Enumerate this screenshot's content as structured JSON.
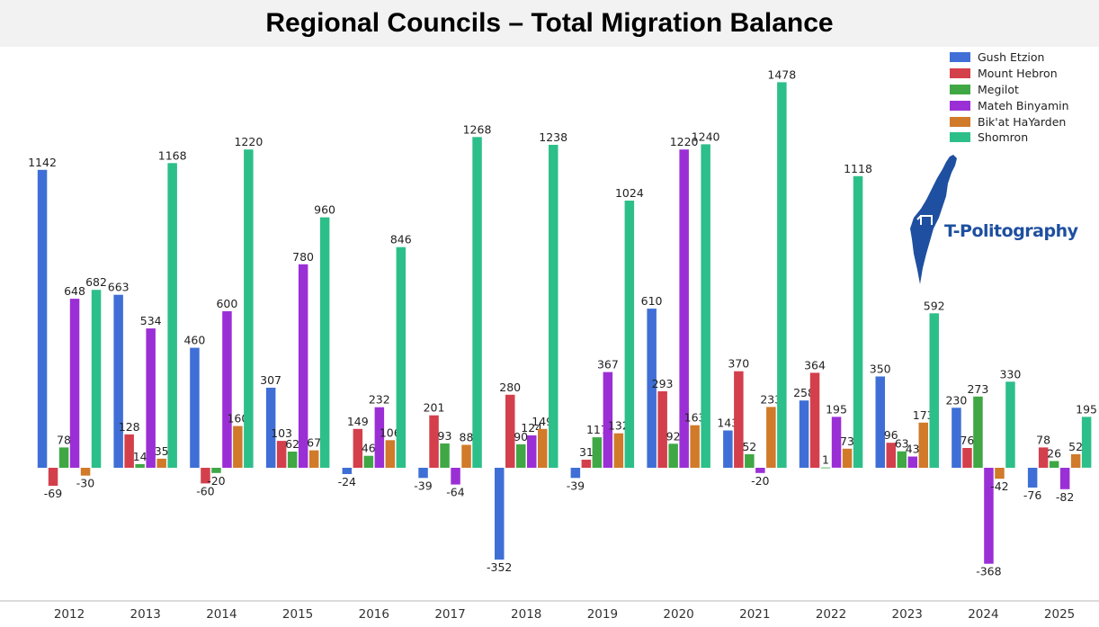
{
  "colors": {
    "Gush Etzion": "#3f6fd6",
    "Mount Hebron": "#d43f4c",
    "Megilot": "#3fa845",
    "Mateh Binyamin": "#9b2fd6",
    "Bik'at HaYarden": "#d07a2a",
    "Shomron": "#2dbf8a",
    "brand": "#1e4fa0"
  },
  "logo": {
    "text": "T-Politography",
    "icon": "israel-map-icon"
  },
  "chart_data": {
    "type": "bar",
    "title": "Regional Councils – Total Migration Balance",
    "xlabel": "",
    "ylabel": "",
    "ylim": [
      -420,
      1560
    ],
    "grid": false,
    "legend_position": "top-right",
    "categories": [
      "2012",
      "2013",
      "2014",
      "2015",
      "2016",
      "2017",
      "2018",
      "2019",
      "2020",
      "2021",
      "2022",
      "2023",
      "2024",
      "2025"
    ],
    "series": [
      {
        "name": "Gush Etzion",
        "values": [
          1142,
          663,
          460,
          307,
          -24,
          -39,
          -352,
          -39,
          610,
          143,
          258,
          350,
          230,
          -76
        ]
      },
      {
        "name": "Mount Hebron",
        "values": [
          -69,
          128,
          -60,
          103,
          149,
          201,
          280,
          31,
          293,
          370,
          364,
          96,
          76,
          78
        ]
      },
      {
        "name": "Megilot",
        "values": [
          78,
          14,
          -20,
          62,
          46,
          93,
          90,
          117,
          92,
          52,
          1,
          63,
          273,
          26
        ]
      },
      {
        "name": "Mateh Binyamin",
        "values": [
          648,
          534,
          600,
          780,
          232,
          -64,
          124,
          367,
          1220,
          -20,
          195,
          43,
          -368,
          -82
        ]
      },
      {
        "name": "Bik'at HaYarden",
        "values": [
          -30,
          35,
          160,
          67,
          106,
          88,
          149,
          132,
          163,
          233,
          73,
          173,
          -42,
          52
        ]
      },
      {
        "name": "Shomron",
        "values": [
          682,
          1168,
          1220,
          960,
          846,
          1268,
          1238,
          1024,
          1240,
          1478,
          1118,
          592,
          330,
          195
        ]
      }
    ]
  }
}
